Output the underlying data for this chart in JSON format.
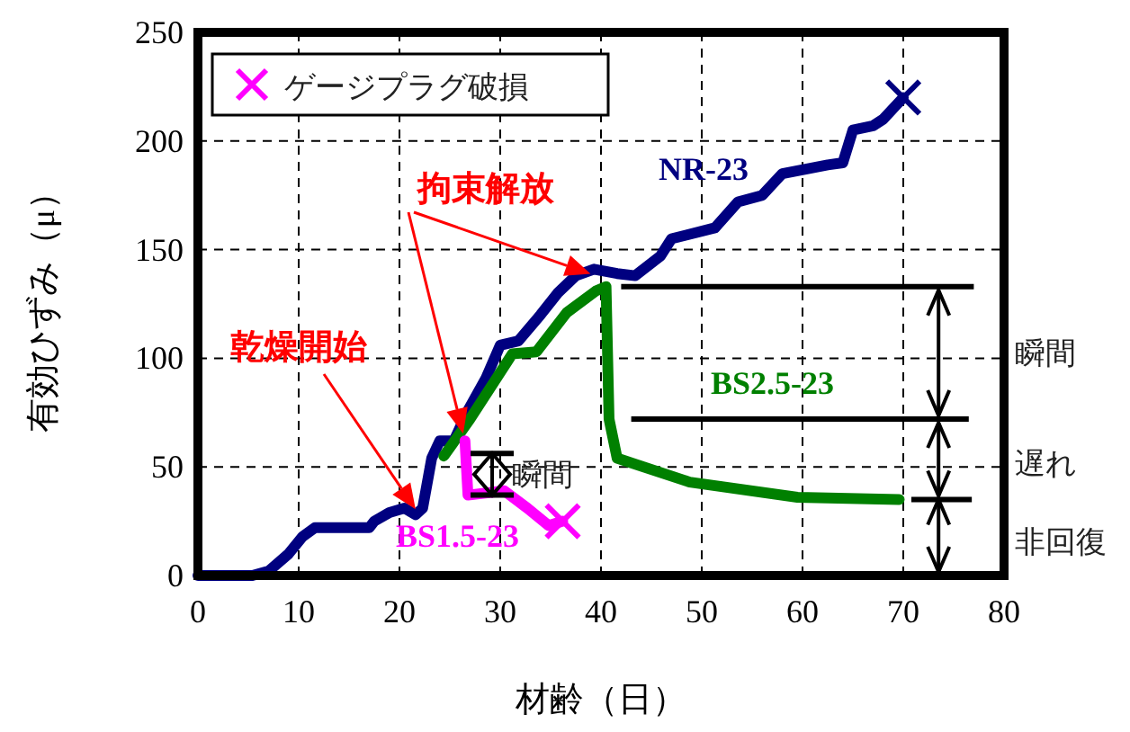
{
  "chart_data": {
    "type": "line",
    "xlabel": "材齢（日）",
    "ylabel": "有効ひずみ（μ）",
    "legend": "top left",
    "xlim": [
      0,
      80
    ],
    "ylim": [
      0,
      250
    ],
    "xticks": [
      0,
      10,
      20,
      30,
      40,
      50,
      60,
      70,
      80
    ],
    "yticks": [
      0,
      50,
      100,
      150,
      200,
      250
    ],
    "grid": true,
    "line_style": "solid",
    "series": [
      {
        "name": "NR-23",
        "color": "#000080",
        "x": [
          0,
          5.4,
          7,
          9,
          10.4,
          11.6,
          13.4,
          17,
          17.5,
          19,
          20.5,
          21.6,
          22.3,
          23.2,
          24,
          25.4,
          26.8,
          28.6,
          30,
          31.8,
          34,
          35.7,
          37.5,
          39.3,
          41.6,
          43.4,
          45.9,
          47,
          51.3,
          53.6,
          56,
          58,
          62.5,
          64,
          65,
          67,
          68,
          70
        ],
        "values": [
          0,
          0,
          2,
          10,
          18,
          22,
          22,
          22,
          25,
          29,
          31,
          28,
          31,
          54,
          62,
          62,
          76,
          91,
          106,
          108,
          120,
          130,
          138,
          141,
          139,
          138,
          147,
          155,
          160,
          172,
          175,
          185,
          189,
          190,
          205,
          207,
          210,
          220
        ]
      },
      {
        "name": "BS2.5-23",
        "color": "#008000",
        "x": [
          24.4,
          27,
          31.2,
          33.6,
          36.6,
          39.5,
          40.5,
          40.8,
          41.6,
          48.8,
          59.5,
          69.6
        ],
        "values": [
          55,
          72,
          102,
          103,
          121,
          131,
          133,
          72,
          54,
          43,
          36,
          35
        ]
      },
      {
        "name": "BS1.5-23",
        "color": "#ff00ff",
        "x": [
          26.5,
          26.8,
          30.4,
          32.7,
          34.8,
          36.2
        ],
        "values": [
          62,
          37,
          39,
          31,
          23,
          25
        ]
      },
      {
        "type": "scatter",
        "name": "ゲージプラグ破損",
        "marker": "cross",
        "x": [
          70,
          36.2
        ],
        "values": [
          220,
          25
        ],
        "colors": [
          "#000080",
          "#ff00ff"
        ]
      }
    ],
    "ref_lines": [
      {
        "axis": "y",
        "value": 133,
        "color": "#000000"
      },
      {
        "axis": "y",
        "value": 72,
        "color": "#000000"
      }
    ],
    "annotations": [
      "乾燥開始",
      {
        "text": "拘束解放",
        "x": 39.5,
        "y": 138
      },
      "瞬間",
      "瞬間",
      "遅れ",
      "非回復"
    ]
  }
}
